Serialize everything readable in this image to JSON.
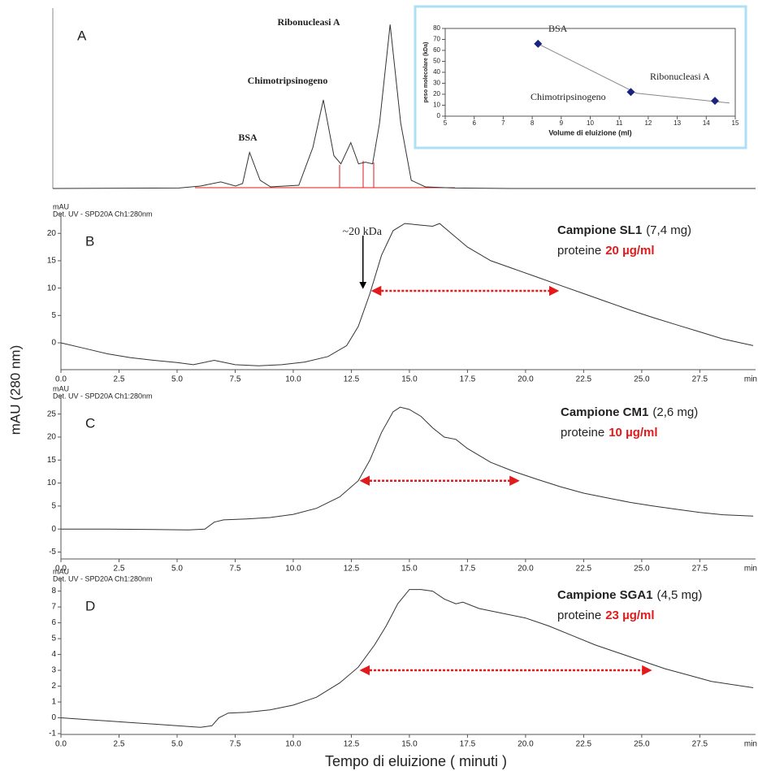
{
  "xlabel": "Tempo di eluizione ( minuti )",
  "ylabel": "mAU (280 nm)",
  "chart_data": [
    {
      "type": "line",
      "label": "A",
      "peak_labels": [
        "BSA",
        "Chimotripsinogeno",
        "Ribonucleasi A"
      ],
      "color": "#333333",
      "xlim": [
        0,
        100
      ],
      "ylim": [
        0,
        110
      ],
      "x": [
        0,
        18,
        21,
        23.9,
        26,
        27,
        28,
        29.5,
        31,
        35,
        37,
        38.5,
        40,
        41,
        42.4,
        43.5,
        44.5,
        45.5,
        46.5,
        48,
        49.5,
        51,
        53,
        57,
        65,
        100
      ],
      "values": [
        0,
        0.3,
        1.5,
        4,
        1.5,
        3,
        22,
        5,
        1,
        2,
        25,
        54,
        20,
        15,
        28,
        15,
        16,
        15,
        40,
        100,
        40,
        5,
        1,
        0.3,
        0,
        0
      ]
    },
    {
      "type": "scatter",
      "xlabel": "Volume di eluizione (ml)",
      "ylabel": "peso molecolare (kDa)",
      "color": "#1a237e",
      "point_labels": [
        "BSA",
        "Chimotripsinogeno",
        "Ribonucleasi A"
      ],
      "x": [
        8.2,
        11.4,
        14.3
      ],
      "values": [
        66,
        22,
        14
      ],
      "fit": {
        "x": [
          8.2,
          11.6,
          14.8
        ],
        "values": [
          66,
          21,
          12
        ]
      },
      "xlim": [
        5,
        15
      ],
      "ylim": [
        0,
        80
      ],
      "xticks": [
        5,
        6,
        7,
        8,
        9,
        10,
        11,
        12,
        13,
        14,
        15
      ],
      "yticks": [
        0,
        10,
        20,
        30,
        40,
        50,
        60,
        70,
        80
      ]
    },
    {
      "type": "line",
      "label": "B",
      "detector": "Det. UV - SPD20A Ch1:280nm",
      "yunit": "mAU",
      "xunit": "min",
      "sample": "Campione SL1",
      "sample_mass": "(7,4 mg)",
      "protein_label": "proteine",
      "protein": "20 µg/ml",
      "color": "#333333",
      "x": [
        0,
        1,
        2,
        3,
        4,
        5,
        5.7,
        6.6,
        7.5,
        8.5,
        9.5,
        10.5,
        11.5,
        12.3,
        12.8,
        13.3,
        13.8,
        14.3,
        14.8,
        15.5,
        16,
        16.3,
        16.8,
        17.5,
        18.5,
        19.5,
        20.5,
        21.5,
        22.5,
        23.5,
        24.5,
        25.5,
        26.5,
        27.5,
        28.5,
        29.8
      ],
      "values": [
        0,
        -1,
        -2,
        -2.7,
        -3.2,
        -3.6,
        -4,
        -3.2,
        -4,
        -4.2,
        -4,
        -3.5,
        -2.5,
        -0.5,
        3,
        9,
        16,
        20.5,
        21.8,
        21.5,
        21.3,
        21.8,
        20,
        17.5,
        15,
        13.5,
        12,
        10.5,
        9,
        7.5,
        6,
        4.6,
        3.3,
        2,
        0.7,
        -0.5
      ],
      "xlim": [
        0,
        29.9
      ],
      "ylim": [
        -4.9,
        23.6
      ],
      "xticks": [
        {
          "value": 0,
          "label": "0.0"
        },
        2.5,
        {
          "value": 5,
          "label": "5.0"
        },
        7.5,
        {
          "value": 10,
          "label": "10.0"
        },
        12.5,
        {
          "value": 15,
          "label": "15.0"
        },
        17.5,
        {
          "value": 20,
          "label": "20.0"
        },
        22.5,
        {
          "value": 25,
          "label": "25.0"
        },
        27.5
      ],
      "yticks": [
        0,
        5,
        10,
        15,
        20
      ],
      "range": {
        "from": 13.3,
        "to": 21.5,
        "y": 9.5
      },
      "marker": {
        "text": "~20 kDa",
        "x": 13,
        "y": 9.8
      }
    },
    {
      "type": "line",
      "label": "C",
      "detector": "Det. UV - SPD20A Ch1:280nm",
      "yunit": "mAU",
      "xunit": "min",
      "sample": "Campione CM1",
      "sample_mass": "(2,6 mg)",
      "protein_label": "proteine",
      "protein": "10 µg/ml",
      "color": "#333333",
      "x": [
        0,
        2,
        4,
        5.5,
        6.2,
        6.6,
        7,
        8,
        9,
        10,
        11,
        12,
        12.8,
        13.3,
        13.8,
        14.3,
        14.6,
        15,
        15.5,
        16,
        16.5,
        17,
        17.5,
        18.5,
        19.5,
        20.5,
        21.5,
        22.5,
        23.5,
        24.5,
        25.5,
        26.5,
        27.5,
        28.5,
        29.8
      ],
      "values": [
        0,
        0,
        -0.1,
        -0.2,
        0,
        1.5,
        2,
        2.2,
        2.5,
        3.2,
        4.5,
        7,
        10.5,
        15,
        21,
        25.5,
        26.5,
        26,
        24.5,
        22,
        20,
        19.5,
        17.5,
        14.5,
        12.5,
        10.8,
        9.2,
        7.8,
        6.8,
        5.8,
        5,
        4.3,
        3.6,
        3.1,
        2.8
      ],
      "xlim": [
        0,
        29.9
      ],
      "ylim": [
        -6.5,
        29
      ],
      "xticks": [
        {
          "value": 0,
          "label": "0.0"
        },
        2.5,
        {
          "value": 5,
          "label": "5.0"
        },
        7.5,
        {
          "value": 10,
          "label": "10.0"
        },
        12.5,
        {
          "value": 15,
          "label": "15.0"
        },
        17.5,
        {
          "value": 20,
          "label": "20.0"
        },
        22.5,
        {
          "value": 25,
          "label": "25.0"
        },
        27.5
      ],
      "yticks": [
        -5,
        0,
        5,
        10,
        15,
        20,
        25
      ],
      "range": {
        "from": 12.8,
        "to": 19.8,
        "y": 10.5
      }
    },
    {
      "type": "line",
      "label": "D",
      "detector": "Det. UV - SPD20A Ch1:280nm",
      "yunit": "mAU",
      "xunit": "min",
      "sample": "Campione SGA1",
      "sample_mass": "(4,5 mg)",
      "protein_label": "proteine",
      "protein": "23 µg/ml",
      "color": "#333333",
      "x": [
        0,
        1,
        2,
        3,
        4,
        5,
        6,
        6.5,
        6.8,
        7.2,
        8,
        9,
        10,
        11,
        12,
        12.8,
        13.5,
        14,
        14.5,
        15,
        15.5,
        16,
        16.5,
        17,
        17.3,
        18,
        19,
        20,
        21,
        22,
        23,
        24,
        25,
        26,
        27,
        28,
        29.8
      ],
      "values": [
        0,
        -0.1,
        -0.2,
        -0.3,
        -0.4,
        -0.5,
        -0.6,
        -0.5,
        0,
        0.3,
        0.35,
        0.5,
        0.8,
        1.3,
        2.2,
        3.2,
        4.6,
        5.8,
        7.2,
        8.1,
        8.1,
        8,
        7.5,
        7.2,
        7.3,
        6.9,
        6.6,
        6.3,
        5.8,
        5.2,
        4.6,
        4.1,
        3.6,
        3.1,
        2.7,
        2.3,
        1.9
      ],
      "xlim": [
        0,
        29.9
      ],
      "ylim": [
        -1.05,
        8.8
      ],
      "xticks": [
        {
          "value": 0,
          "label": "0.0"
        },
        2.5,
        {
          "value": 5,
          "label": "5.0"
        },
        7.5,
        {
          "value": 10,
          "label": "10.0"
        },
        12.5,
        {
          "value": 15,
          "label": "15.0"
        },
        17.5,
        {
          "value": 20,
          "label": "20.0"
        },
        22.5,
        {
          "value": 25,
          "label": "25.0"
        },
        27.5
      ],
      "yticks": [
        -1,
        0,
        1,
        2,
        3,
        4,
        5,
        6,
        7,
        8
      ],
      "range": {
        "from": 12.8,
        "to": 25.5,
        "y": 3
      }
    }
  ]
}
